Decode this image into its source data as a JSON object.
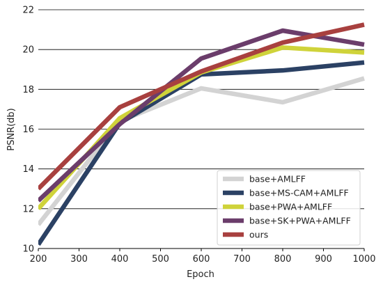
{
  "chart_data": {
    "type": "line",
    "xlabel": "Epoch",
    "ylabel": "PSNR(db)",
    "xlim": [
      200,
      1000
    ],
    "ylim": [
      10,
      22
    ],
    "xticks": [
      200,
      300,
      400,
      500,
      600,
      700,
      800,
      900,
      1000
    ],
    "yticks": [
      10,
      12,
      14,
      16,
      18,
      20,
      22
    ],
    "grid": "horizontal",
    "legend_position": "lower-right",
    "x": [
      200,
      400,
      600,
      800,
      1000
    ],
    "series": [
      {
        "name": "base+AMLFF",
        "color": "#d3d3d3",
        "values": [
          11.2,
          16.4,
          18.05,
          17.35,
          18.55
        ]
      },
      {
        "name": "base+MS-CAM+AMLFF",
        "color": "#2b4164",
        "values": [
          10.2,
          16.3,
          18.75,
          18.95,
          19.35
        ]
      },
      {
        "name": "base+PWA+AMLFF",
        "color": "#cfd33a",
        "values": [
          12.0,
          16.55,
          18.85,
          20.1,
          19.85
        ]
      },
      {
        "name": "base+SK+PWA+AMLFF",
        "color": "#6b3d6b",
        "values": [
          12.4,
          16.25,
          19.55,
          20.95,
          20.25
        ]
      },
      {
        "name": "ours",
        "color": "#a8403f",
        "values": [
          13.0,
          17.1,
          18.9,
          20.35,
          21.25
        ]
      }
    ]
  }
}
